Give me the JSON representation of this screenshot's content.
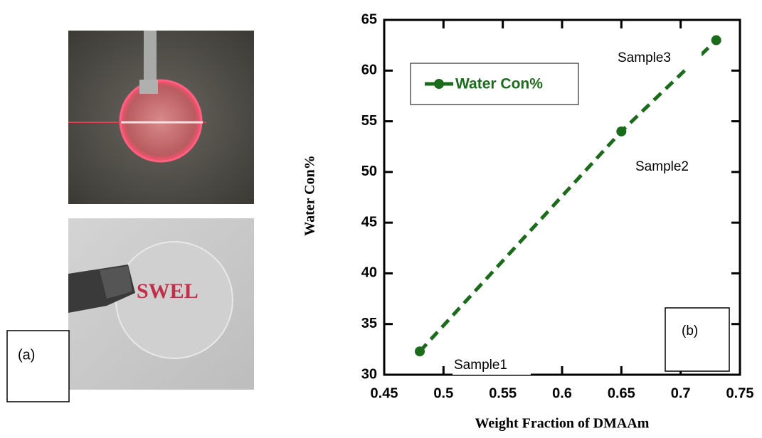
{
  "panel_a": {
    "label": "(a)",
    "photo_text": "SWEL"
  },
  "chart_data": {
    "type": "line",
    "xlabel": "Weight Fraction of DMAAm",
    "ylabel": "Water Con%",
    "x": [
      0.48,
      0.65,
      0.73
    ],
    "series": [
      {
        "name": "Water Con%",
        "color": "#1a6b1a",
        "values": [
          32.3,
          54,
          63
        ]
      }
    ],
    "xlim": [
      0.45,
      0.75
    ],
    "xticks": [
      0.45,
      0.5,
      0.55,
      0.6,
      0.65,
      0.7,
      0.75
    ],
    "ylim": [
      30,
      65
    ],
    "yticks": [
      30,
      35,
      40,
      45,
      50,
      55,
      60,
      65
    ],
    "legend": "upper left",
    "annotations": [
      "Sample1",
      "Sample2",
      "Sample3",
      "(b)"
    ]
  }
}
